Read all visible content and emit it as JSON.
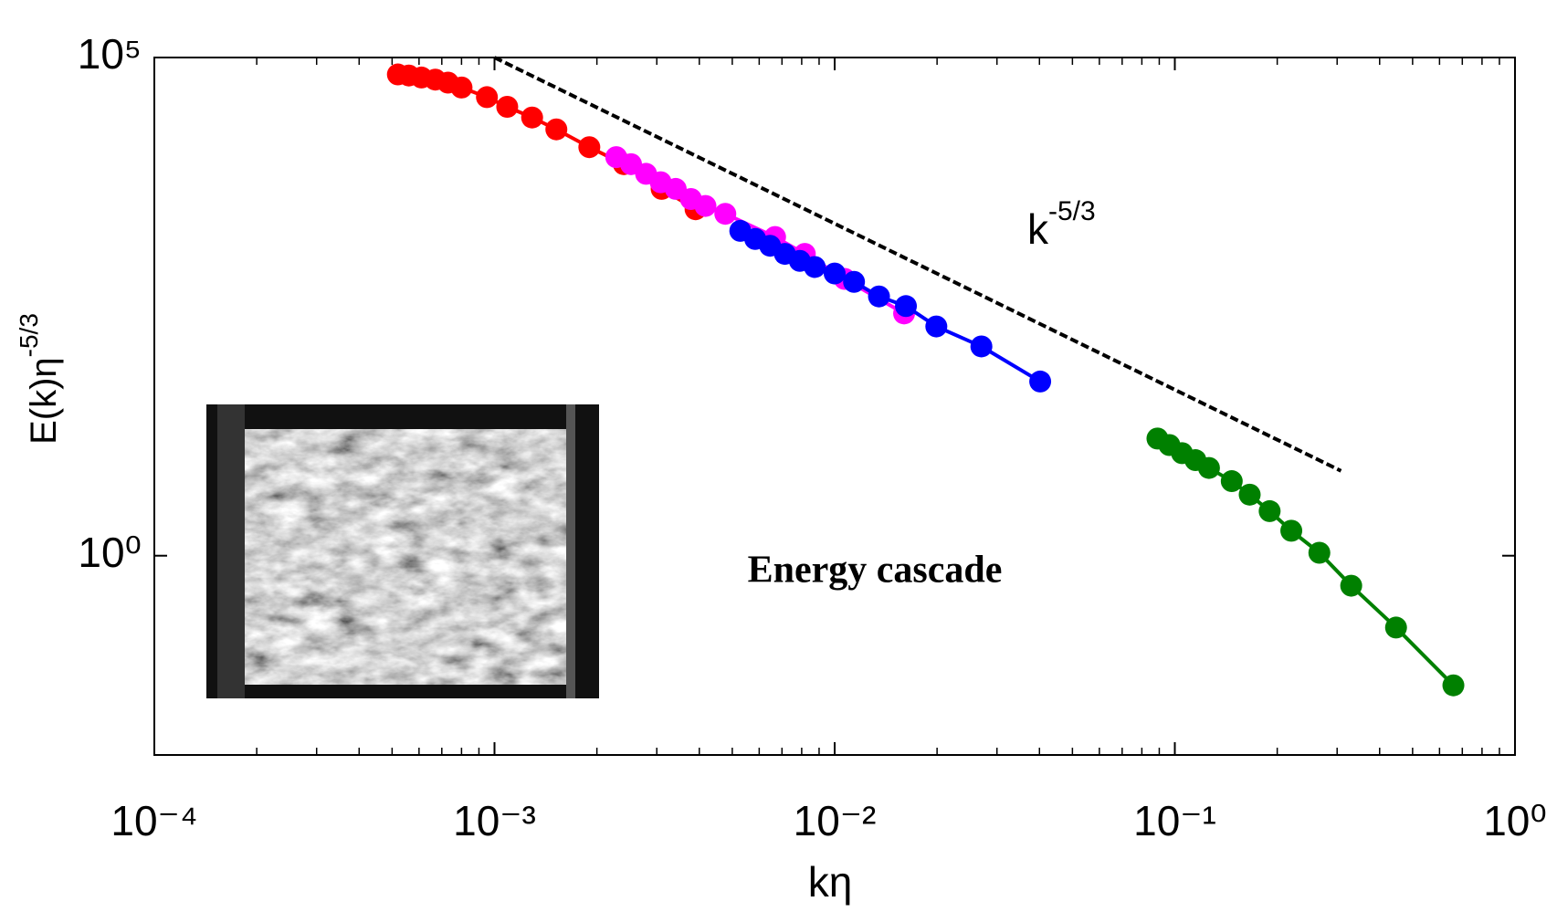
{
  "chart_data": {
    "type": "line",
    "xlabel": "kη",
    "ylabel": "E(k)η",
    "ylabel_superscript": "-5/3",
    "xscale": "log",
    "yscale": "log",
    "xlim": [
      0.0001,
      1
    ],
    "ylim": [
      0.01,
      100000
    ],
    "xticks": [
      {
        "value": 0.0001,
        "label": "10⁻⁴"
      },
      {
        "value": 0.001,
        "label": "10⁻³"
      },
      {
        "value": 0.01,
        "label": "10⁻²"
      },
      {
        "value": 0.1,
        "label": "10⁻¹"
      },
      {
        "value": 1,
        "label": "10⁰"
      }
    ],
    "yticks": [
      {
        "value": 1,
        "label": "10⁰"
      },
      {
        "value": 100000,
        "label": "10⁵"
      }
    ],
    "minor_ticks": true,
    "markers": true,
    "series": [
      {
        "color": "#ff0000",
        "x": [
          0.00052,
          0.00056,
          0.00061,
          0.00067,
          0.00073,
          0.0008,
          0.00095,
          0.00109,
          0.00129,
          0.00152,
          0.0019,
          0.0024,
          0.0031,
          0.0039
        ],
        "values": [
          67600,
          66000,
          63000,
          60000,
          56000,
          50000,
          40000,
          32000,
          25000,
          19000,
          12600,
          8500,
          4800,
          3000
        ]
      },
      {
        "color": "#ff00ff",
        "x": [
          0.00228,
          0.00252,
          0.00279,
          0.00308,
          0.00341,
          0.00378,
          0.00417,
          0.00477,
          0.00668,
          0.00817,
          0.0107,
          0.016
        ],
        "values": [
          10000,
          8500,
          6800,
          5600,
          4800,
          3800,
          3240,
          2700,
          1580,
          1070,
          600,
          270
        ]
      },
      {
        "color": "#0000ff",
        "x": [
          0.00528,
          0.00584,
          0.00646,
          0.00714,
          0.0079,
          0.00874,
          0.01,
          0.0114,
          0.0135,
          0.0162,
          0.0199,
          0.027,
          0.0402
        ],
        "values": [
          1820,
          1510,
          1290,
          1070,
          910,
          790,
          680,
          560,
          400,
          320,
          200,
          126,
          56
        ]
      },
      {
        "color": "#008000",
        "x": [
          0.0889,
          0.0964,
          0.105,
          0.115,
          0.126,
          0.147,
          0.166,
          0.19,
          0.22,
          0.266,
          0.33,
          0.447,
          0.659
        ],
        "values": [
          15,
          12.9,
          10.7,
          9.1,
          7.6,
          5.6,
          4.1,
          2.8,
          1.78,
          1.07,
          0.5,
          0.19,
          0.05
        ]
      }
    ],
    "reference_line": {
      "color": "#000000",
      "style": "dashed",
      "x": [
        0.001,
        0.308
      ],
      "values": [
        100000,
        7.1
      ]
    },
    "annotations": [
      {
        "text": "k",
        "superscript": "-5/3"
      },
      {
        "text": "Energy cascade"
      }
    ]
  }
}
